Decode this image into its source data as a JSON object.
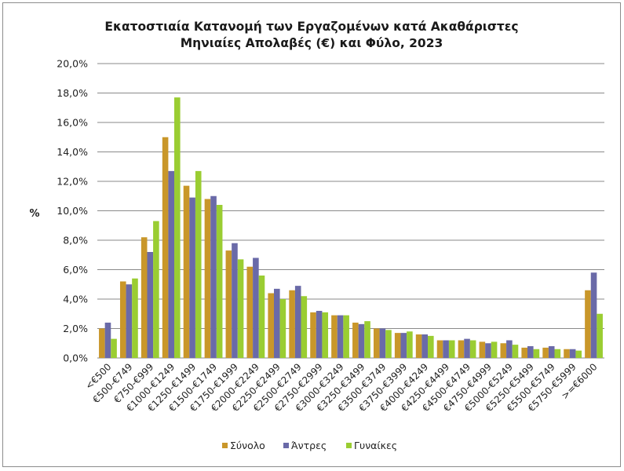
{
  "chart_data": {
    "type": "bar",
    "title": "Εκατοστιαία Κατανομή των Εργαζομένων κατά Ακαθάριστες Μηνιαίες Απολαβές (€) και Φύλο, 2023",
    "title_lines": [
      "Εκατοστιαία Κατανομή των Εργαζομένων κατά Ακαθάριστες",
      "Μηνιαίες Απολαβές (€) και Φύλο, 2023"
    ],
    "ylabel": "%",
    "xlabel": "",
    "ylim": [
      0,
      20
    ],
    "yticks": [
      "0,0%",
      "2,0%",
      "4,0%",
      "6,0%",
      "8,0%",
      "10,0%",
      "12,0%",
      "14,0%",
      "16,0%",
      "18,0%",
      "20,0%"
    ],
    "grid": true,
    "legend_position": "bottom",
    "categories": [
      "<€500",
      "€500-€749",
      "€750-€999",
      "€1000-€1249",
      "€1250-€1499",
      "€1500-€1749",
      "€1750-€1999",
      "€2000-€2249",
      "€2250-€2499",
      "€2500-€2749",
      "€2750-€2999",
      "€3000-€3249",
      "€3250-€3499",
      "€3500-€3749",
      "€3750-€3999",
      "€4000-€4249",
      "€4250-€4499",
      "€4500-€4749",
      "€4750-€4999",
      "€5000-€5249",
      "€5250-€5499",
      "€5500-€5749",
      "€5750-€5999",
      ">=€6000"
    ],
    "series": [
      {
        "name": "Σύνολο",
        "color": "#c9972a",
        "values": [
          2.0,
          5.2,
          8.2,
          15.0,
          11.7,
          10.8,
          7.3,
          6.2,
          4.4,
          4.6,
          3.1,
          2.9,
          2.4,
          2.0,
          1.7,
          1.6,
          1.2,
          1.2,
          1.1,
          1.0,
          0.7,
          0.7,
          0.6,
          4.6
        ]
      },
      {
        "name": "Άντρες",
        "color": "#6a6aa8",
        "values": [
          2.4,
          5.0,
          7.2,
          12.7,
          10.9,
          11.0,
          7.8,
          6.8,
          4.7,
          4.9,
          3.2,
          2.9,
          2.3,
          2.0,
          1.7,
          1.6,
          1.2,
          1.3,
          1.0,
          1.2,
          0.8,
          0.8,
          0.6,
          5.8
        ]
      },
      {
        "name": "Γυναίκες",
        "color": "#9acd32",
        "values": [
          1.3,
          5.4,
          9.3,
          17.7,
          12.7,
          10.4,
          6.7,
          5.6,
          4.0,
          4.2,
          3.1,
          2.9,
          2.5,
          1.9,
          1.8,
          1.5,
          1.2,
          1.2,
          1.1,
          0.9,
          0.6,
          0.6,
          0.5,
          3.0
        ]
      }
    ]
  }
}
